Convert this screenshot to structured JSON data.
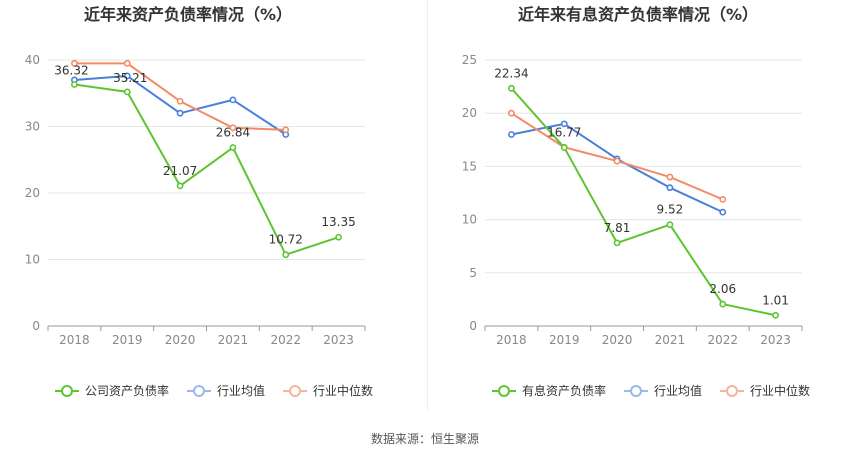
{
  "source_text": "数据来源：恒生聚源",
  "chart_data": [
    {
      "type": "line",
      "title": "近年来资产负债率情况（%）",
      "categories": [
        "2018",
        "2019",
        "2020",
        "2021",
        "2022",
        "2023"
      ],
      "ylim": [
        0,
        40
      ],
      "yticks": [
        0,
        10,
        20,
        30,
        40
      ],
      "grid": true,
      "legend_position": "bottom",
      "series": [
        {
          "name": "公司资产负债率",
          "color": "#5cc531",
          "values": [
            36.32,
            35.21,
            21.07,
            26.84,
            10.72,
            13.35
          ],
          "labels": [
            "36.32",
            "35.21",
            "21.07",
            "26.84",
            "10.72",
            "13.35"
          ]
        },
        {
          "name": "行业均值",
          "color": "#4a7fdc",
          "values": [
            37.0,
            37.6,
            32.0,
            34.0,
            28.8,
            null
          ]
        },
        {
          "name": "行业中位数",
          "color": "#f28b66",
          "values": [
            39.5,
            39.5,
            33.8,
            29.8,
            29.5,
            null
          ]
        }
      ]
    },
    {
      "type": "line",
      "title": "近年来有息资产负债率情况（%）",
      "categories": [
        "2018",
        "2019",
        "2020",
        "2021",
        "2022",
        "2023"
      ],
      "ylim": [
        0,
        25
      ],
      "yticks": [
        0,
        5,
        10,
        15,
        20,
        25
      ],
      "grid": true,
      "legend_position": "bottom",
      "series": [
        {
          "name": "有息资产负债率",
          "color": "#5cc531",
          "values": [
            22.34,
            16.77,
            7.81,
            9.52,
            2.06,
            1.01
          ],
          "labels": [
            "22.34",
            "16.77",
            "7.81",
            "9.52",
            "2.06",
            "1.01"
          ]
        },
        {
          "name": "行业均值",
          "color": "#4a7fdc",
          "values": [
            18.0,
            19.0,
            15.7,
            13.0,
            10.7,
            null
          ]
        },
        {
          "name": "行业中位数",
          "color": "#f28b66",
          "values": [
            20.0,
            16.8,
            15.5,
            14.0,
            11.9,
            null
          ]
        }
      ]
    }
  ]
}
